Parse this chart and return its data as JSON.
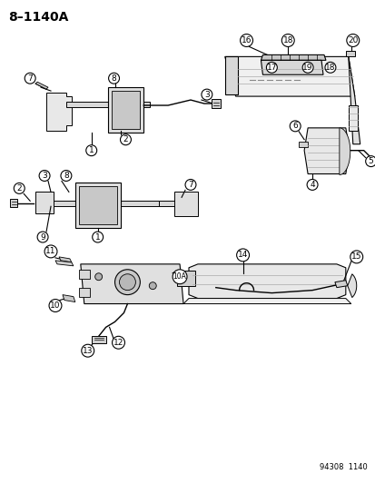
{
  "title": "8–1140A",
  "footer": "94308  1140",
  "bg_color": "#ffffff",
  "fig_width": 4.14,
  "fig_height": 5.33,
  "dpi": 100
}
